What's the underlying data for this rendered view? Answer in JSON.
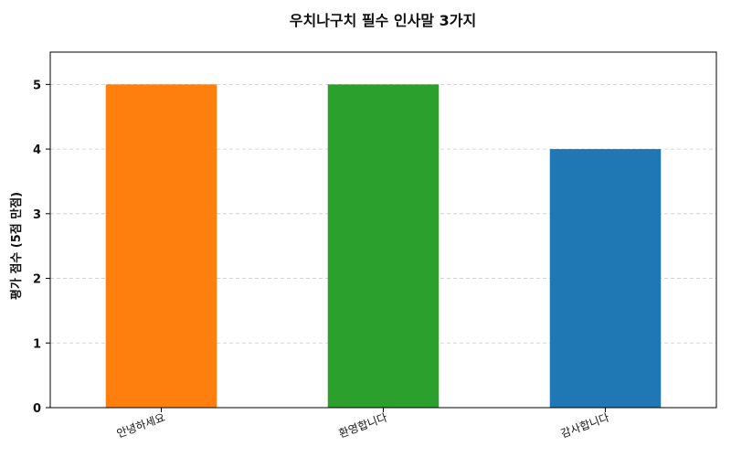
{
  "chart_data": {
    "type": "bar",
    "title": "우치나구치 필수 인사말 3가지",
    "xlabel": "",
    "ylabel": "평가 점수 (5점 만점)",
    "categories": [
      "안녕하세요",
      "환영합니다",
      "감사합니다"
    ],
    "values": [
      5,
      5,
      4
    ],
    "bar_colors": [
      "#ff7f0e",
      "#2ca02c",
      "#1f77b4"
    ],
    "ylim": [
      0,
      5.5
    ],
    "yticks": [
      0,
      1,
      2,
      3,
      4,
      5
    ],
    "grid": "y-dashed",
    "legend": "none"
  }
}
